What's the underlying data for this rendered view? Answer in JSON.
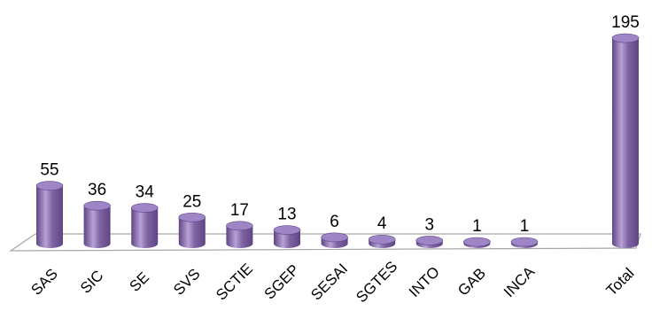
{
  "chart_data": {
    "type": "bar",
    "style": "3d-cylinder",
    "categories": [
      "SAS",
      "SIC",
      "SE",
      "SVS",
      "SCTIE",
      "SGEP",
      "SESAI",
      "SGTES",
      "INTO",
      "GAB",
      "INCA",
      "Total"
    ],
    "values": [
      55,
      36,
      34,
      25,
      17,
      13,
      6,
      4,
      3,
      1,
      1,
      195
    ],
    "title": "",
    "xlabel": "",
    "ylabel": "",
    "ylim": [
      0,
      195
    ],
    "grid": false,
    "legend": "none",
    "data_labels": true,
    "colors": {
      "bar_body": "#8064a2",
      "bar_light": "#b7a2d6",
      "bar_dark": "#5f4585",
      "bar_top": "#9e86c6",
      "floor_edge": "#a6a6a6"
    }
  }
}
